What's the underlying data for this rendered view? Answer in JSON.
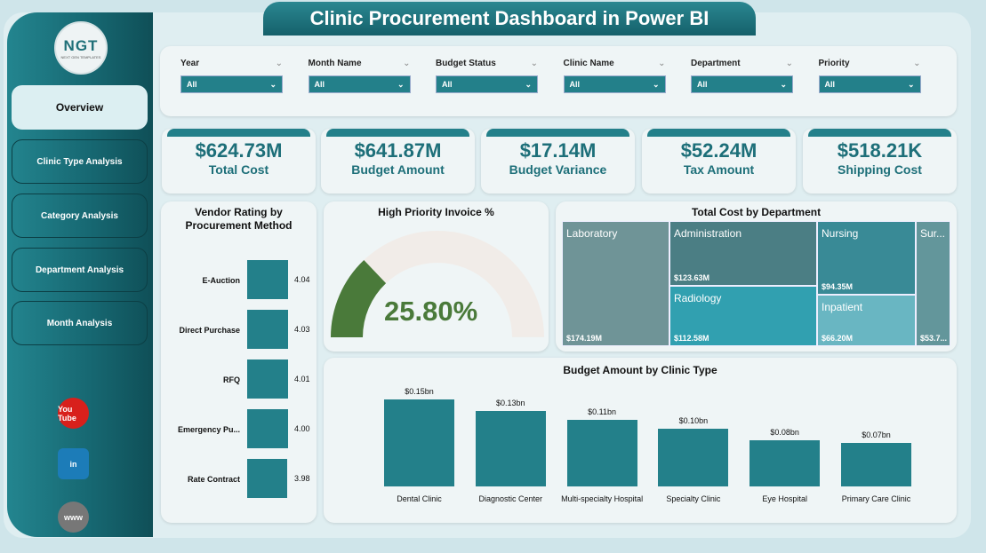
{
  "title": "Clinic Procurement Dashboard in Power BI",
  "logo": {
    "text": "NGT",
    "sub": "NEXT GEN TEMPLATES"
  },
  "sidebar": {
    "items": [
      {
        "label": "Overview",
        "active": true
      },
      {
        "label": "Clinic Type Analysis"
      },
      {
        "label": "Category Analysis"
      },
      {
        "label": "Department Analysis"
      },
      {
        "label": "Month Analysis"
      }
    ],
    "social": [
      {
        "icon": "youtube-icon",
        "text": "You Tube",
        "color": "#d8201c"
      },
      {
        "icon": "linkedin-icon",
        "text": "in",
        "color": "#1c7cb8"
      },
      {
        "icon": "globe-icon",
        "text": "www",
        "color": "#777777"
      }
    ]
  },
  "filters": [
    {
      "label": "Year",
      "value": "All"
    },
    {
      "label": "Month Name",
      "value": "All"
    },
    {
      "label": "Budget Status",
      "value": "All"
    },
    {
      "label": "Clinic Name",
      "value": "All"
    },
    {
      "label": "Department",
      "value": "All"
    },
    {
      "label": "Priority",
      "value": "All"
    }
  ],
  "kpis": [
    {
      "value": "$624.73M",
      "label": "Total Cost"
    },
    {
      "value": "$641.87M",
      "label": "Budget Amount"
    },
    {
      "value": "$17.14M",
      "label": "Budget Variance"
    },
    {
      "value": "$52.24M",
      "label": "Tax Amount"
    },
    {
      "value": "$518.21K",
      "label": "Shipping Cost"
    }
  ],
  "colors": {
    "accent": "#23808a",
    "gauge": "#4a7a3a"
  },
  "chart_data": [
    {
      "type": "bar",
      "orientation": "horizontal",
      "title": "Vendor Rating by Procurement Method",
      "categories": [
        "E-Auction",
        "Direct Purchase",
        "RFQ",
        "Emergency Pu...",
        "Rate Contract"
      ],
      "values": [
        4.04,
        4.03,
        4.01,
        4.0,
        3.98
      ],
      "labels": [
        "4.04",
        "4.03",
        "4.01",
        "4.00",
        "3.98"
      ]
    },
    {
      "type": "gauge",
      "title": "High Priority Invoice %",
      "value": 25.8,
      "label": "25.80%",
      "min": 0,
      "max": 100
    },
    {
      "type": "treemap",
      "title": "Total Cost by Department",
      "items": [
        {
          "name": "Laboratory",
          "value": "$174.19M"
        },
        {
          "name": "Administration",
          "value": "$123.63M"
        },
        {
          "name": "Radiology",
          "value": "$112.58M"
        },
        {
          "name": "Nursing",
          "value": "$94.35M"
        },
        {
          "name": "Inpatient",
          "value": "$66.20M"
        },
        {
          "name": "Sur...",
          "value": "$53.7..."
        }
      ]
    },
    {
      "type": "bar",
      "title": "Budget Amount by Clinic Type",
      "categories": [
        "Dental Clinic",
        "Diagnostic Center",
        "Multi-specialty Hospital",
        "Specialty Clinic",
        "Eye Hospital",
        "Primary Care Clinic"
      ],
      "values": [
        0.15,
        0.13,
        0.115,
        0.1,
        0.08,
        0.075
      ],
      "labels": [
        "$0.15bn",
        "$0.13bn",
        "$0.11bn",
        "$0.10bn",
        "$0.08bn",
        "$0.07bn"
      ],
      "unit": "bn USD"
    }
  ]
}
